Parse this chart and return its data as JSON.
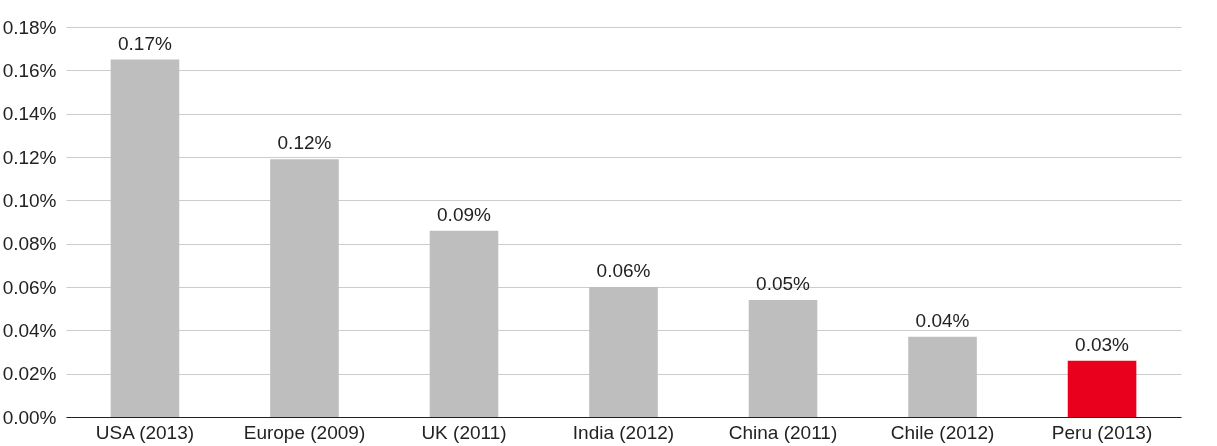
{
  "chart_data": {
    "type": "bar",
    "categories": [
      "USA (2013)",
      "Europe (2009)",
      "UK (2011)",
      "India (2012)",
      "China (2011)",
      "Chile (2012)",
      "Peru (2013)"
    ],
    "values": [
      0.165,
      0.119,
      0.086,
      0.06,
      0.054,
      0.037,
      0.026
    ],
    "colors": [
      "#bdbebd",
      "#bdbebd",
      "#bdbebd",
      "#bdbebd",
      "#bdbebd",
      "#bdbebd",
      "#e8001c"
    ],
    "value_labels": [
      "0.17%",
      "0.12%",
      "0.09%",
      "0.06%",
      "0.05%",
      "0.04%",
      "0.03%"
    ],
    "ylim": [
      0,
      0.18
    ],
    "yticks": [
      {
        "value": 0,
        "label": "0.00%"
      },
      {
        "value": 0.02,
        "label": "0.02%"
      },
      {
        "value": 0.04,
        "label": "0.04%"
      },
      {
        "value": 0.06,
        "label": "0.06%"
      },
      {
        "value": 0.08,
        "label": "0.08%"
      },
      {
        "value": 0.1,
        "label": "0.10%"
      },
      {
        "value": 0.12,
        "label": "0.12%"
      },
      {
        "value": 0.14,
        "label": "0.14%"
      },
      {
        "value": 0.16,
        "label": "0.16%"
      },
      {
        "value": 0.18,
        "label": "0.18%"
      }
    ],
    "grid": "y"
  }
}
